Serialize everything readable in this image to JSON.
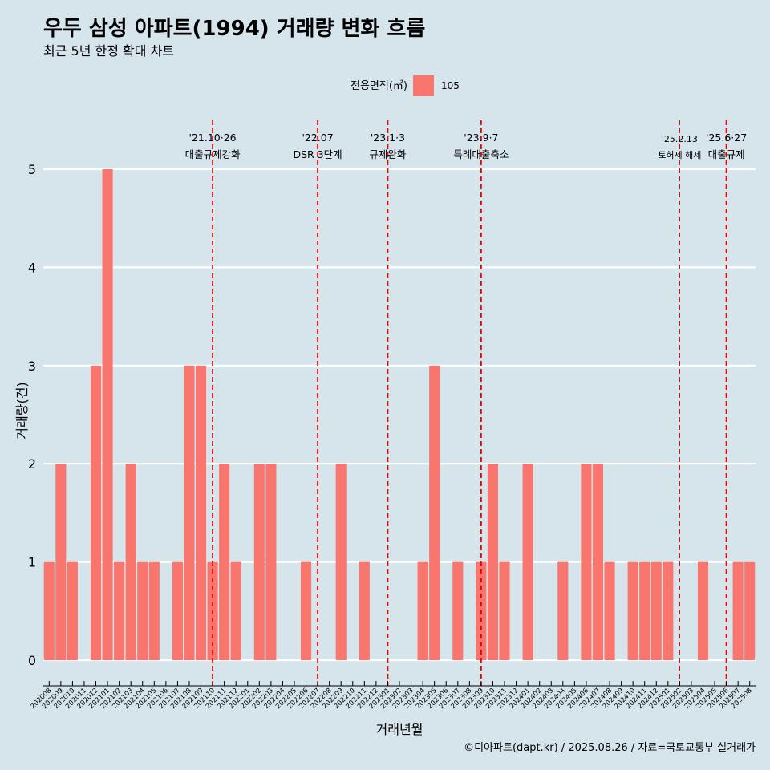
{
  "chart_data": {
    "type": "bar",
    "title": "우두 삼성 아파트(1994) 거래량 변화 흐름",
    "subtitle": "최근 5년 한정 확대 차트",
    "xlabel": "거래년월",
    "ylabel": "거래량(건)",
    "ylim": [
      0,
      5
    ],
    "yticks": [
      "0",
      "1",
      "2",
      "3",
      "4",
      "5"
    ],
    "legend": {
      "title": "전용면적(㎡)",
      "position": "top",
      "entries": [
        {
          "label": "105",
          "color": "#f8766d"
        }
      ]
    },
    "grid": true,
    "categories": [
      "202008",
      "202009",
      "202010",
      "202011",
      "202012",
      "202101",
      "202102",
      "202103",
      "202104",
      "202105",
      "202106",
      "202107",
      "202108",
      "202109",
      "202110",
      "202111",
      "202112",
      "202201",
      "202202",
      "202203",
      "202204",
      "202205",
      "202206",
      "202207",
      "202208",
      "202209",
      "202210",
      "202211",
      "202212",
      "202301",
      "202302",
      "202303",
      "202304",
      "202305",
      "202306",
      "202307",
      "202308",
      "202309",
      "202310",
      "202311",
      "202312",
      "202401",
      "202402",
      "202403",
      "202404",
      "202405",
      "202406",
      "202407",
      "202408",
      "202409",
      "202410",
      "202411",
      "202412",
      "202501",
      "202502",
      "202503",
      "202504",
      "202505",
      "202506",
      "202507",
      "202508"
    ],
    "series": [
      {
        "name": "105",
        "color": "#f8766d",
        "values": [
          1,
          2,
          1,
          0,
          3,
          5,
          1,
          2,
          1,
          1,
          0,
          1,
          3,
          3,
          1,
          2,
          1,
          0,
          2,
          2,
          0,
          0,
          1,
          0,
          0,
          2,
          0,
          1,
          0,
          0,
          0,
          0,
          1,
          3,
          0,
          1,
          0,
          1,
          2,
          1,
          0,
          2,
          0,
          0,
          1,
          0,
          2,
          2,
          1,
          0,
          1,
          1,
          1,
          1,
          0,
          0,
          1,
          0,
          0,
          1,
          1
        ]
      }
    ],
    "annotations": [
      {
        "at": "202110",
        "date": "'21.10·26",
        "label": "대출규제강화",
        "size": "normal"
      },
      {
        "at": "202207",
        "date": "'22.07",
        "label": "DSR 3단계",
        "size": "normal"
      },
      {
        "at": "202301",
        "date": "'23.1·3",
        "label": "규제완화",
        "size": "normal"
      },
      {
        "at": "202309",
        "date": "'23.9·7",
        "label": "특례대출축소",
        "size": "normal"
      },
      {
        "at": "202502",
        "date": "'25.2.13",
        "label": "토허제 해제",
        "size": "small"
      },
      {
        "at": "202506",
        "date": "'25.6·27",
        "label": "대출규제",
        "size": "normal"
      }
    ],
    "caption": "©디아파트(dapt.kr) / 2025.08.26 / 자료=국토교통부 실거래가"
  }
}
